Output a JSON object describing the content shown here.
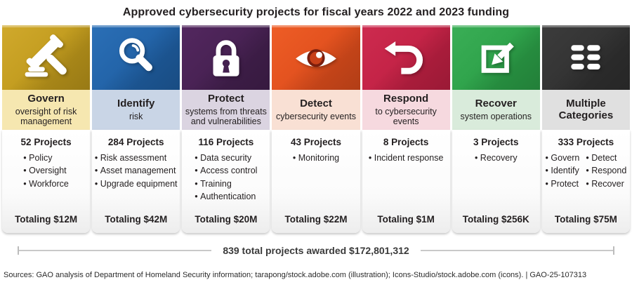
{
  "title": "Approved cybersecurity projects for fiscal years 2022 and 2023 funding",
  "columns": [
    {
      "name": "Govern",
      "subtitle": "oversight of risk management",
      "icon": "gavel-icon",
      "tile_color": "#BE981B",
      "tile_color_light": "#D0A92C",
      "label_bg": "#F6E7B0",
      "projects": "52 Projects",
      "bullets": [
        [
          "Policy",
          "Oversight",
          "Workforce"
        ]
      ],
      "total": "Totaling $12M"
    },
    {
      "name": "Identify",
      "subtitle": "risk",
      "icon": "magnifier-icon",
      "tile_color": "#1F5FA3",
      "tile_color_light": "#2B6FB6",
      "label_bg": "#C9D5E6",
      "projects": "284 Projects",
      "bullets": [
        [
          "Risk assessment",
          "Asset management",
          "Upgrade equipment"
        ]
      ],
      "total": "Totaling $42M"
    },
    {
      "name": "Protect",
      "subtitle": "systems from threats and vulnerabilities",
      "icon": "lock-icon",
      "tile_color": "#44204F",
      "tile_color_light": "#53275F",
      "label_bg": "#DBD4E1",
      "projects": "116 Projects",
      "bullets": [
        [
          "Data security",
          "Access control",
          "Training",
          "Authentication"
        ]
      ],
      "total": "Totaling $20M"
    },
    {
      "name": "Detect",
      "subtitle": "cybersecurity events",
      "icon": "eye-icon",
      "tile_color": "#DE4D1C",
      "tile_color_light": "#EE5D26",
      "label_bg": "#F9E0D4",
      "projects": "43 Projects",
      "bullets": [
        [
          "Monitoring"
        ]
      ],
      "total": "Totaling $22M"
    },
    {
      "name": "Respond",
      "subtitle": "to cybersecurity events",
      "icon": "undo-arrow-icon",
      "tile_color": "#C02043",
      "tile_color_light": "#CD2B4F",
      "label_bg": "#F6D9DF",
      "projects": "8 Projects",
      "bullets": [
        [
          "Incident response"
        ]
      ],
      "total": "Totaling $1M"
    },
    {
      "name": "Recover",
      "subtitle": "system operations",
      "icon": "recover-arrow-icon",
      "tile_color": "#2B9F47",
      "tile_color_light": "#3AAE56",
      "label_bg": "#D9EBDB",
      "projects": "3 Projects",
      "bullets": [
        [
          "Recovery"
        ]
      ],
      "total": "Totaling $256K"
    },
    {
      "name": "Multiple Categories",
      "subtitle": "",
      "icon": "grid-list-icon",
      "tile_color": "#303030",
      "tile_color_light": "#3C3C3C",
      "label_bg": "#E0E0E0",
      "projects": "333 Projects",
      "bullets": [
        [
          "Govern",
          "Identify",
          "Protect"
        ],
        [
          "Detect",
          "Respond",
          "Recover"
        ]
      ],
      "total": "Totaling $75M"
    }
  ],
  "footer": {
    "banner": "839 total projects awarded $172,801,312"
  },
  "sources": "Sources: GAO analysis of Department of Homeland Security information; tarapong/stock.adobe.com (illustration); Icons-Studio/stock.adobe.com (icons).  |  GAO-25-107313",
  "chart_data": {
    "type": "table",
    "title": "Approved cybersecurity projects for fiscal years 2022 and 2023 funding",
    "categories": [
      "Govern",
      "Identify",
      "Protect",
      "Detect",
      "Respond",
      "Recover",
      "Multiple Categories"
    ],
    "series": [
      {
        "name": "Projects",
        "values": [
          52,
          284,
          116,
          43,
          8,
          3,
          333
        ]
      },
      {
        "name": "Total funding",
        "values": [
          "$12M",
          "$42M",
          "$20M",
          "$22M",
          "$1M",
          "$256K",
          "$75M"
        ]
      }
    ],
    "category_descriptions": [
      "oversight of risk management",
      "risk",
      "systems from threats and vulnerabilities",
      "cybersecurity events",
      "to cybersecurity events",
      "system operations",
      ""
    ],
    "annotations": [
      "839 total projects awarded $172,801,312"
    ]
  }
}
